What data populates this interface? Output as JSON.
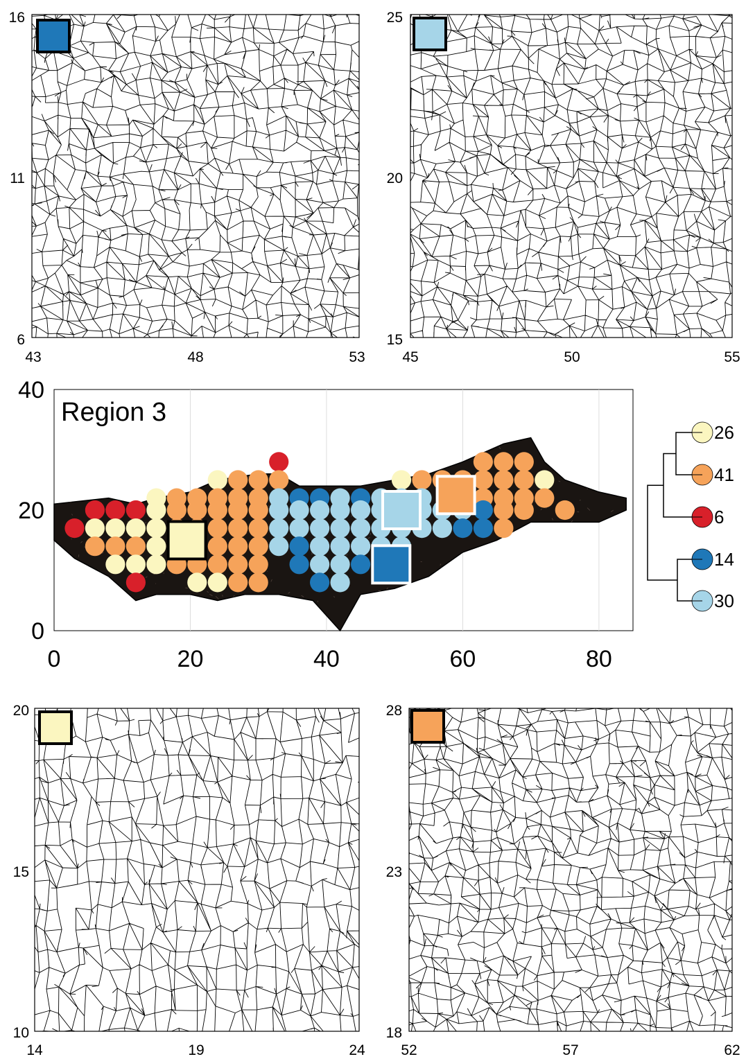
{
  "colors": {
    "yellow": "#fbf6c0",
    "orange": "#f6a35a",
    "red": "#d8202a",
    "darkblue": "#1f78b8",
    "lightblue": "#a6d5e8",
    "crack": "#000000"
  },
  "chart_data": [
    {
      "type": "crack-network-panel",
      "panel": "top-left",
      "marker_color": "darkblue",
      "xlim": [
        43,
        53
      ],
      "ylim": [
        6,
        16
      ],
      "x_ticks": [
        "43",
        "48",
        "53"
      ],
      "y_ticks": [
        "16",
        "11",
        "6"
      ]
    },
    {
      "type": "crack-network-panel",
      "panel": "top-right",
      "marker_color": "lightblue",
      "xlim": [
        45,
        55
      ],
      "ylim": [
        15,
        25
      ],
      "x_ticks": [
        "45",
        "50",
        "55"
      ],
      "y_ticks": [
        "25",
        "20",
        "15"
      ]
    },
    {
      "type": "scatter",
      "panel": "middle",
      "title": "Region 3",
      "xlim": [
        0,
        85
      ],
      "ylim": [
        0,
        40
      ],
      "x_ticks": [
        "0",
        "20",
        "40",
        "60",
        "80"
      ],
      "y_ticks": [
        "40",
        "20",
        "0"
      ],
      "grid": true,
      "cluster_colors": [
        "yellow",
        "orange",
        "red",
        "darkblue",
        "lightblue"
      ],
      "points": {
        "x": [
          3,
          6,
          6,
          6,
          9,
          9,
          9,
          9,
          12,
          12,
          12,
          12,
          12,
          15,
          15,
          15,
          15,
          15,
          18,
          18,
          18,
          18,
          18,
          21,
          21,
          21,
          21,
          21,
          21,
          24,
          24,
          24,
          24,
          24,
          24,
          24,
          27,
          27,
          27,
          27,
          27,
          27,
          27,
          30,
          30,
          30,
          30,
          30,
          30,
          30,
          33,
          33,
          33,
          33,
          33,
          33,
          36,
          36,
          36,
          36,
          36,
          39,
          39,
          39,
          39,
          39,
          39,
          42,
          42,
          42,
          42,
          42,
          42,
          45,
          45,
          45,
          45,
          45,
          48,
          48,
          48,
          48,
          48,
          51,
          51,
          51,
          51,
          51,
          54,
          54,
          54,
          54,
          57,
          57,
          57,
          60,
          60,
          60,
          63,
          63,
          63,
          63,
          63,
          66,
          66,
          66,
          66,
          66,
          69,
          69,
          69,
          69,
          72,
          72,
          75
        ],
        "y": [
          17,
          20,
          17,
          14,
          20,
          17,
          14,
          11,
          20,
          17,
          14,
          11,
          8,
          22,
          20,
          17,
          14,
          11,
          22,
          20,
          17,
          14,
          11,
          22,
          20,
          17,
          14,
          11,
          8,
          25,
          22,
          20,
          17,
          14,
          11,
          8,
          25,
          22,
          20,
          17,
          14,
          11,
          8,
          25,
          22,
          20,
          17,
          14,
          11,
          8,
          28,
          25,
          22,
          20,
          17,
          14,
          22,
          20,
          17,
          14,
          11,
          22,
          20,
          17,
          14,
          11,
          8,
          22,
          20,
          17,
          14,
          11,
          8,
          22,
          20,
          17,
          14,
          11,
          22,
          20,
          17,
          14,
          11,
          25,
          22,
          20,
          17,
          14,
          25,
          22,
          20,
          17,
          25,
          20,
          17,
          25,
          20,
          17,
          28,
          25,
          22,
          20,
          17,
          28,
          25,
          22,
          20,
          17,
          28,
          25,
          22,
          20,
          25,
          22,
          20
        ],
        "cluster": [
          2,
          2,
          0,
          1,
          2,
          0,
          1,
          0,
          2,
          0,
          1,
          0,
          2,
          0,
          0,
          0,
          0,
          0,
          1,
          1,
          1,
          1,
          1,
          1,
          1,
          1,
          1,
          1,
          0,
          0,
          1,
          1,
          1,
          1,
          1,
          0,
          1,
          1,
          1,
          1,
          1,
          1,
          1,
          1,
          1,
          1,
          1,
          1,
          1,
          1,
          2,
          1,
          4,
          4,
          4,
          4,
          3,
          4,
          4,
          3,
          3,
          3,
          4,
          4,
          4,
          4,
          3,
          4,
          4,
          4,
          4,
          4,
          4,
          3,
          4,
          4,
          4,
          3,
          4,
          4,
          4,
          4,
          3,
          0,
          4,
          4,
          4,
          4,
          1,
          4,
          4,
          4,
          1,
          4,
          4,
          1,
          4,
          3,
          1,
          1,
          1,
          3,
          3,
          1,
          1,
          1,
          1,
          1,
          1,
          1,
          1,
          1,
          0,
          1,
          1
        ]
      },
      "squares": [
        {
          "x": 19.5,
          "y": 15,
          "color": "yellow",
          "border": "black"
        },
        {
          "x": 51,
          "y": 20,
          "color": "lightblue",
          "border": "white"
        },
        {
          "x": 49.5,
          "y": 11,
          "color": "darkblue",
          "border": "white"
        },
        {
          "x": 59,
          "y": 22.5,
          "color": "orange",
          "border": "white"
        }
      ]
    },
    {
      "type": "dendrogram",
      "panel": "legend",
      "leaves": [
        {
          "label": "26",
          "color": "yellow"
        },
        {
          "label": "41",
          "color": "orange"
        },
        {
          "label": "6",
          "color": "red"
        },
        {
          "label": "14",
          "color": "darkblue"
        },
        {
          "label": "30",
          "color": "lightblue"
        }
      ]
    },
    {
      "type": "crack-network-panel",
      "panel": "bottom-left",
      "marker_color": "yellow",
      "xlim": [
        14,
        24
      ],
      "ylim": [
        10,
        20
      ],
      "x_ticks": [
        "14",
        "19",
        "24"
      ],
      "y_ticks": [
        "20",
        "15",
        "10"
      ]
    },
    {
      "type": "crack-network-panel",
      "panel": "bottom-right",
      "marker_color": "orange",
      "xlim": [
        52,
        62
      ],
      "ylim": [
        18,
        28
      ],
      "x_ticks": [
        "52",
        "57",
        "62"
      ],
      "y_ticks": [
        "28",
        "23",
        "18"
      ]
    }
  ]
}
